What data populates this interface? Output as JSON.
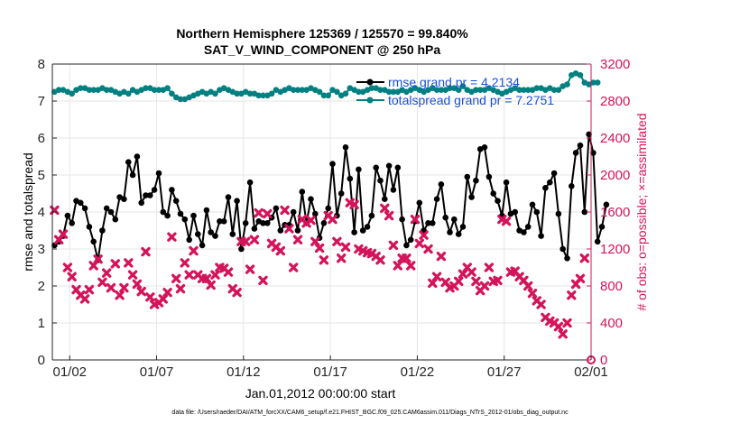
{
  "chart_data": {
    "type": "line",
    "title_line1": "Northern Hemisphere 125369 / 125570 = 99.840%",
    "title_line2": "SAT_V_WIND_COMPONENT @ 250 hPa",
    "xlabel": "Jan.01,2012 00:00:00 start",
    "ylabel_left": "rmse and totalspread",
    "ylabel_right": "# of obs: o=possible; ×=assimilated",
    "footer": "data file: /Users/raeder/DAI/ATM_forcXX/CAM6_setup/f.e21.FHIST_BGC.f09_025.CAM6assim.011/Diags_NTrS_2012-01/obs_diag_output.nc",
    "x_ticks": [
      {
        "day": 2,
        "label": "01/02"
      },
      {
        "day": 7,
        "label": "01/07"
      },
      {
        "day": 12,
        "label": "01/12"
      },
      {
        "day": 17,
        "label": "01/17"
      },
      {
        "day": 22,
        "label": "01/22"
      },
      {
        "day": 27,
        "label": "01/27"
      },
      {
        "day": 32,
        "label": "02/01"
      }
    ],
    "xlim": [
      1.0,
      32.0
    ],
    "ylim_left": [
      0,
      8
    ],
    "yticks_left": [
      "0",
      "1",
      "2",
      "3",
      "4",
      "5",
      "6",
      "7",
      "8"
    ],
    "ylim_right": [
      0,
      3200
    ],
    "yticks_right": [
      "0",
      "400",
      "800",
      "1200",
      "1600",
      "2000",
      "2400",
      "2800",
      "3200"
    ],
    "grid": true,
    "legend_position": "top-right",
    "colors": {
      "rmse": "#000000",
      "spread": "#008080",
      "obs": "#d4145a",
      "legend_text": "#1a4fd6",
      "right_axis": "#d4145a"
    },
    "series": [
      {
        "name": "rmse grand pr = 4.2134",
        "axis": "left",
        "x_start": 1.125,
        "x_step": 0.25,
        "values": [
          3.1,
          3.2,
          3.35,
          3.9,
          3.7,
          4.3,
          4.25,
          4.1,
          3.6,
          3.2,
          2.7,
          3.5,
          4.1,
          4.0,
          3.8,
          4.4,
          4.35,
          5.35,
          5.0,
          5.5,
          4.25,
          4.45,
          4.45,
          4.6,
          5.05,
          4.0,
          3.9,
          4.6,
          4.3,
          3.95,
          3.8,
          3.25,
          3.9,
          3.4,
          3.1,
          4.05,
          3.45,
          3.35,
          3.75,
          3.75,
          4.4,
          3.4,
          4.3,
          3.0,
          3.7,
          4.8,
          3.55,
          3.75,
          3.7,
          3.7,
          3.85,
          4.1,
          3.5,
          3.65,
          3.65,
          4.0,
          3.5,
          4.55,
          3.7,
          4.35,
          3.95,
          3.3,
          3.7,
          4.1,
          5.3,
          3.9,
          4.5,
          5.75,
          4.9,
          3.45,
          5.15,
          3.5,
          3.6,
          3.9,
          5.2,
          4.85,
          4.35,
          5.25,
          4.6,
          5.2,
          3.8,
          3.1,
          3.25,
          3.75,
          4.25,
          3.5,
          3.7,
          3.7,
          4.35,
          4.75,
          3.85,
          3.45,
          3.8,
          3.4,
          3.6,
          4.95,
          4.4,
          4.85,
          5.7,
          5.75,
          4.95,
          4.5,
          4.3,
          3.9,
          4.8,
          3.95,
          4.0,
          3.5,
          3.45,
          3.6,
          4.2,
          4.0,
          3.35,
          4.65,
          4.8,
          5.05,
          3.95,
          3.0,
          2.75,
          4.7,
          5.6,
          5.8,
          4.0,
          6.1,
          5.6,
          3.2,
          3.6,
          4.2
        ]
      },
      {
        "name": "totalspread grand pr = 7.2751",
        "axis": "left",
        "x_start": 1.125,
        "x_step": 0.25,
        "values": [
          7.25,
          7.3,
          7.3,
          7.25,
          7.2,
          7.3,
          7.35,
          7.35,
          7.3,
          7.3,
          7.3,
          7.35,
          7.3,
          7.3,
          7.25,
          7.2,
          7.25,
          7.2,
          7.3,
          7.25,
          7.3,
          7.35,
          7.35,
          7.3,
          7.3,
          7.3,
          7.35,
          7.2,
          7.1,
          7.05,
          7.05,
          7.1,
          7.15,
          7.2,
          7.25,
          7.2,
          7.25,
          7.2,
          7.3,
          7.35,
          7.3,
          7.25,
          7.2,
          7.2,
          7.25,
          7.2,
          7.2,
          7.15,
          7.15,
          7.15,
          7.2,
          7.3,
          7.25,
          7.3,
          7.35,
          7.3,
          7.3,
          7.3,
          7.3,
          7.35,
          7.3,
          7.25,
          7.15,
          7.15,
          7.3,
          7.25,
          7.15,
          7.2,
          7.35,
          7.3,
          7.25,
          7.25,
          7.3,
          7.35,
          7.35,
          7.3,
          7.3,
          7.25,
          7.25,
          7.25,
          7.3,
          7.25,
          7.3,
          7.35,
          7.3,
          7.25,
          7.3,
          7.35,
          7.3,
          7.3,
          7.3,
          7.35,
          7.35,
          7.3,
          7.4,
          7.3,
          7.25,
          7.3,
          7.3,
          7.3,
          7.35,
          7.3,
          7.25,
          7.2,
          7.25,
          7.3,
          7.35,
          7.3,
          7.3,
          7.3,
          7.3,
          7.35,
          7.35,
          7.3,
          7.35,
          7.3,
          7.3,
          7.4,
          7.45,
          7.7,
          7.75,
          7.7,
          7.5,
          7.45,
          7.5,
          7.5
        ]
      },
      {
        "name": "# of obs assimilated",
        "axis": "right",
        "x_start": 1.125,
        "x_step": 0.25,
        "values": [
          1620,
          1300,
          1360,
          1000,
          900,
          760,
          700,
          660,
          760,
          1020,
          1090,
          840,
          940,
          780,
          1040,
          700,
          780,
          1050,
          920,
          820,
          740,
          1170,
          680,
          600,
          620,
          660,
          730,
          1330,
          880,
          770,
          1050,
          920,
          1180,
          920,
          880,
          880,
          810,
          920,
          1000,
          990,
          950,
          770,
          730,
          1280,
          1280,
          980,
          1300,
          1590,
          860,
          1580,
          1260,
          1220,
          1180,
          1620,
          1420,
          1000,
          1300,
          1520,
          1480,
          1510,
          1280,
          1210,
          1080,
          1560,
          1520,
          1280,
          1100,
          1220,
          1700,
          1680,
          1200,
          1180,
          1160,
          1150,
          1120,
          1080,
          1640,
          1560,
          1240,
          1020,
          1100,
          1100,
          1020,
          1520,
          1260,
          1350,
          1200,
          830,
          900,
          1120,
          840,
          780,
          800,
          850,
          930,
          1000,
          950,
          850,
          750,
          800,
          1000,
          850,
          860,
          1520,
          1500,
          950,
          960,
          900,
          860,
          800,
          720,
          640,
          600,
          460,
          420,
          400,
          360,
          280,
          400,
          700,
          820,
          880,
          1100
        ]
      }
    ]
  }
}
